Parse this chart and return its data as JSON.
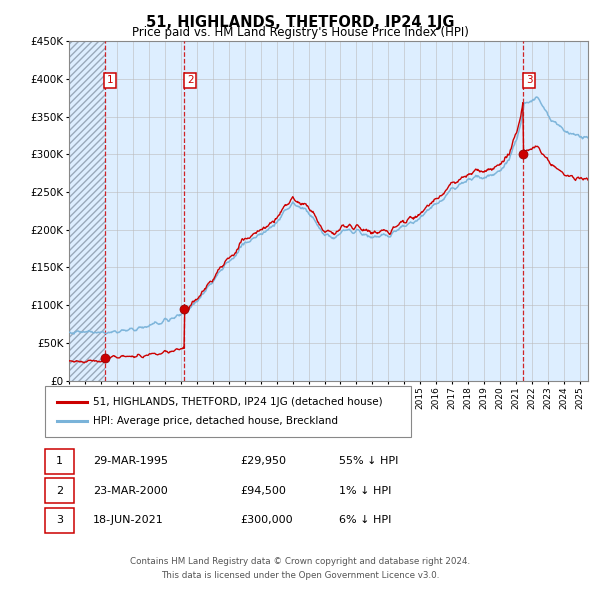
{
  "title": "51, HIGHLANDS, THETFORD, IP24 1JG",
  "subtitle": "Price paid vs. HM Land Registry's House Price Index (HPI)",
  "legend_line1": "51, HIGHLANDS, THETFORD, IP24 1JG (detached house)",
  "legend_line2": "HPI: Average price, detached house, Breckland",
  "footer1": "Contains HM Land Registry data © Crown copyright and database right 2024.",
  "footer2": "This data is licensed under the Open Government Licence v3.0.",
  "transactions": [
    {
      "num": 1,
      "date": "29-MAR-1995",
      "price": "£29,950",
      "pct": "55% ↓ HPI",
      "year": 1995.23,
      "value": 29950
    },
    {
      "num": 2,
      "date": "23-MAR-2000",
      "price": "£94,500",
      "pct": "1% ↓ HPI",
      "year": 2000.23,
      "value": 94500
    },
    {
      "num": 3,
      "date": "18-JUN-2021",
      "price": "£300,000",
      "pct": "6% ↓ HPI",
      "year": 2021.46,
      "value": 300000
    }
  ],
  "hpi_color": "#7ab3d9",
  "price_color": "#cc0000",
  "dashed_line_color": "#cc0000",
  "grid_color": "#bbbbbb",
  "bg_color": "#ddeeff",
  "hatch_color": "#bbccdd",
  "ylim": [
    0,
    450000
  ],
  "xlim_start": 1993.0,
  "xlim_end": 2025.5,
  "yticks": [
    0,
    50000,
    100000,
    150000,
    200000,
    250000,
    300000,
    350000,
    400000,
    450000
  ],
  "ytick_labels": [
    "£0",
    "£50K",
    "£100K",
    "£150K",
    "£200K",
    "£250K",
    "£300K",
    "£350K",
    "£400K",
    "£450K"
  ],
  "xtick_years": [
    1993,
    1994,
    1995,
    1996,
    1997,
    1998,
    1999,
    2000,
    2001,
    2002,
    2003,
    2004,
    2005,
    2006,
    2007,
    2008,
    2009,
    2010,
    2011,
    2012,
    2013,
    2014,
    2015,
    2016,
    2017,
    2018,
    2019,
    2020,
    2021,
    2022,
    2023,
    2024,
    2025
  ]
}
